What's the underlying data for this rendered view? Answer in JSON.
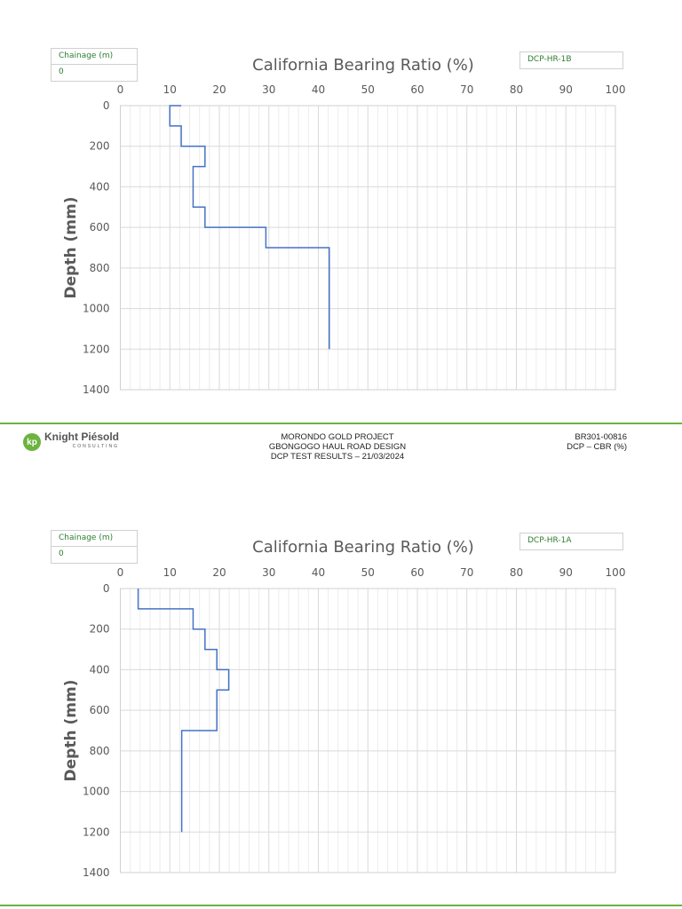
{
  "footer": {
    "logo_text": "Knight Piésold",
    "logo_sub": "CONSULTING",
    "center_lines": [
      "MORONDO GOLD PROJECT",
      "GBONGOGO HAUL ROAD DESIGN",
      "DCP TEST RESULTS – 21/03/2024"
    ],
    "right_lines": [
      "BR301-00816",
      "DCP – CBR (%)"
    ]
  },
  "colors": {
    "line": "#4472c4",
    "accent": "#6cb33f",
    "label_green": "#2e7d32"
  },
  "chart_data": [
    {
      "type": "line",
      "step": true,
      "title": "California Bearing Ratio (%)",
      "ylabel": "Depth (mm)",
      "xlabel": "",
      "chainage_label": "Chainage (m)",
      "chainage_value": "0",
      "test_id": "DCP-HR-1B",
      "xlim": [
        0,
        100
      ],
      "ylim": [
        0,
        1400
      ],
      "y_inverted": true,
      "x_axis_position": "top",
      "xticks": [
        0,
        10,
        20,
        30,
        40,
        50,
        60,
        70,
        80,
        90,
        100
      ],
      "yticks": [
        0,
        200,
        400,
        600,
        800,
        1000,
        1200,
        1400
      ],
      "grid": true,
      "points": [
        [
          12.3,
          0
        ],
        [
          10,
          0
        ],
        [
          10,
          100
        ],
        [
          12.3,
          100
        ],
        [
          12.3,
          200
        ],
        [
          17.1,
          200
        ],
        [
          17.1,
          300
        ],
        [
          14.7,
          300
        ],
        [
          14.7,
          500
        ],
        [
          17.1,
          500
        ],
        [
          17.1,
          600
        ],
        [
          29.4,
          600
        ],
        [
          29.4,
          700
        ],
        [
          42.2,
          700
        ],
        [
          42.2,
          1200
        ]
      ]
    },
    {
      "type": "line",
      "step": true,
      "title": "California Bearing Ratio (%)",
      "ylabel": "Depth (mm)",
      "xlabel": "",
      "chainage_label": "Chainage (m)",
      "chainage_value": "0",
      "test_id": "DCP-HR-1A",
      "xlim": [
        0,
        100
      ],
      "ylim": [
        0,
        1400
      ],
      "y_inverted": true,
      "x_axis_position": "top",
      "xticks": [
        0,
        10,
        20,
        30,
        40,
        50,
        60,
        70,
        80,
        90,
        100
      ],
      "yticks": [
        0,
        200,
        400,
        600,
        800,
        1000,
        1200,
        1400
      ],
      "grid": true,
      "points": [
        [
          3.6,
          0
        ],
        [
          3.6,
          100
        ],
        [
          14.7,
          100
        ],
        [
          14.7,
          200
        ],
        [
          17.1,
          200
        ],
        [
          17.1,
          300
        ],
        [
          19.5,
          300
        ],
        [
          19.5,
          400
        ],
        [
          21.9,
          400
        ],
        [
          21.9,
          500
        ],
        [
          19.5,
          500
        ],
        [
          19.5,
          700
        ],
        [
          12.4,
          700
        ],
        [
          12.4,
          1200
        ]
      ]
    }
  ]
}
